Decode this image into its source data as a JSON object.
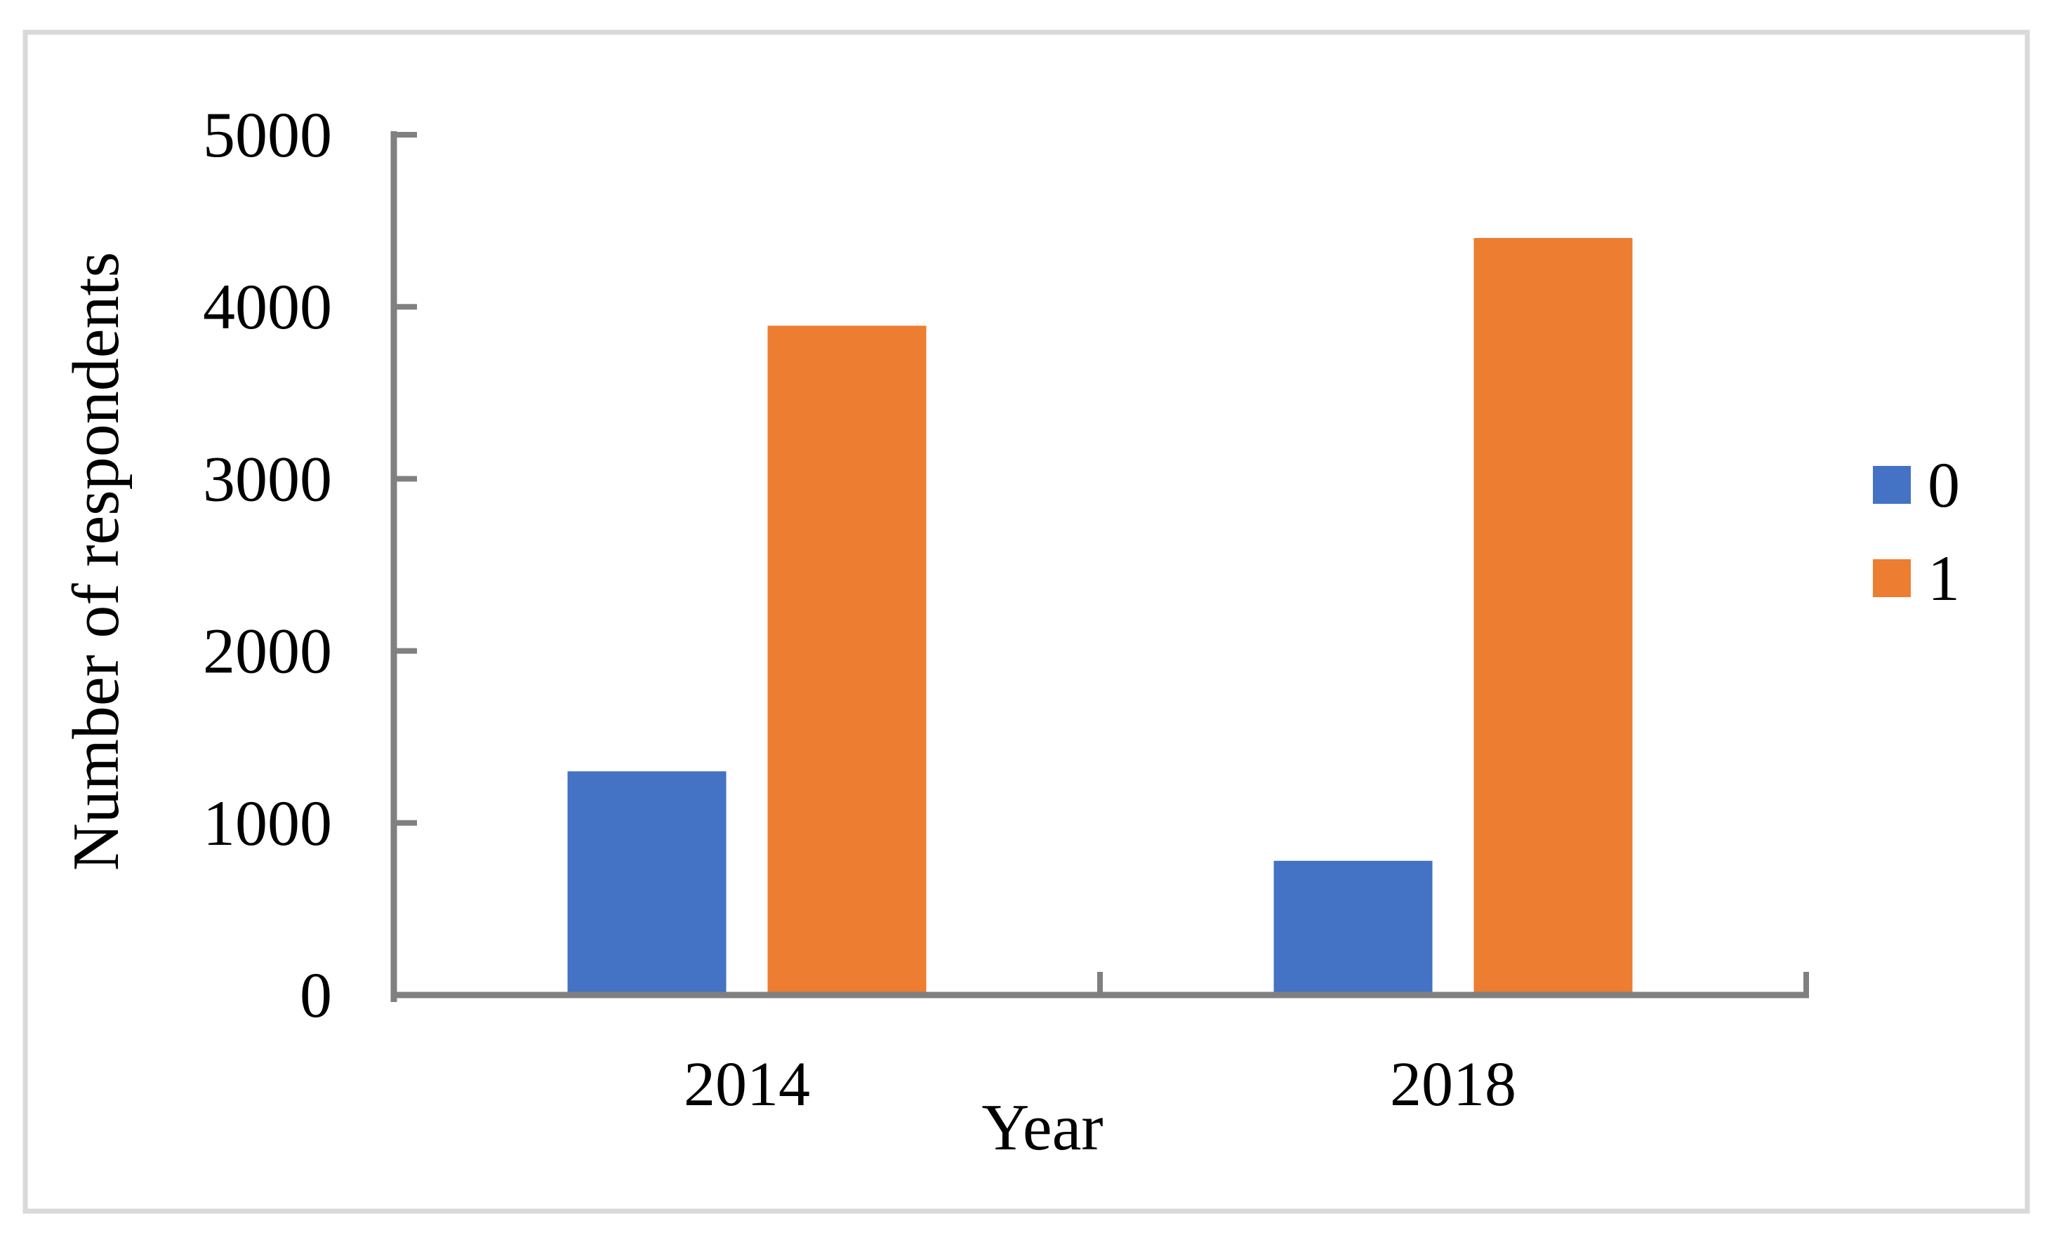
{
  "figure": {
    "background": "#FFFFFF",
    "border_color": "#D9D9D9"
  },
  "chart_data": {
    "type": "bar",
    "title": "",
    "categories": [
      "2014",
      "2018"
    ],
    "series": [
      {
        "name": "0",
        "color": "#4472C4",
        "values": [
          1300,
          780
        ]
      },
      {
        "name": "1",
        "color": "#ED7D31",
        "values": [
          3890,
          4400
        ]
      }
    ],
    "xlabel": "Year",
    "ylabel": "Number of respondents",
    "ylim": [
      0,
      5000
    ],
    "yticks": [
      0,
      1000,
      2000,
      3000,
      4000,
      5000
    ],
    "grid": false,
    "legend_position": "right",
    "legend_entries": [
      "0",
      "1"
    ],
    "axis_color": "#808080",
    "text_color": "#000000"
  }
}
